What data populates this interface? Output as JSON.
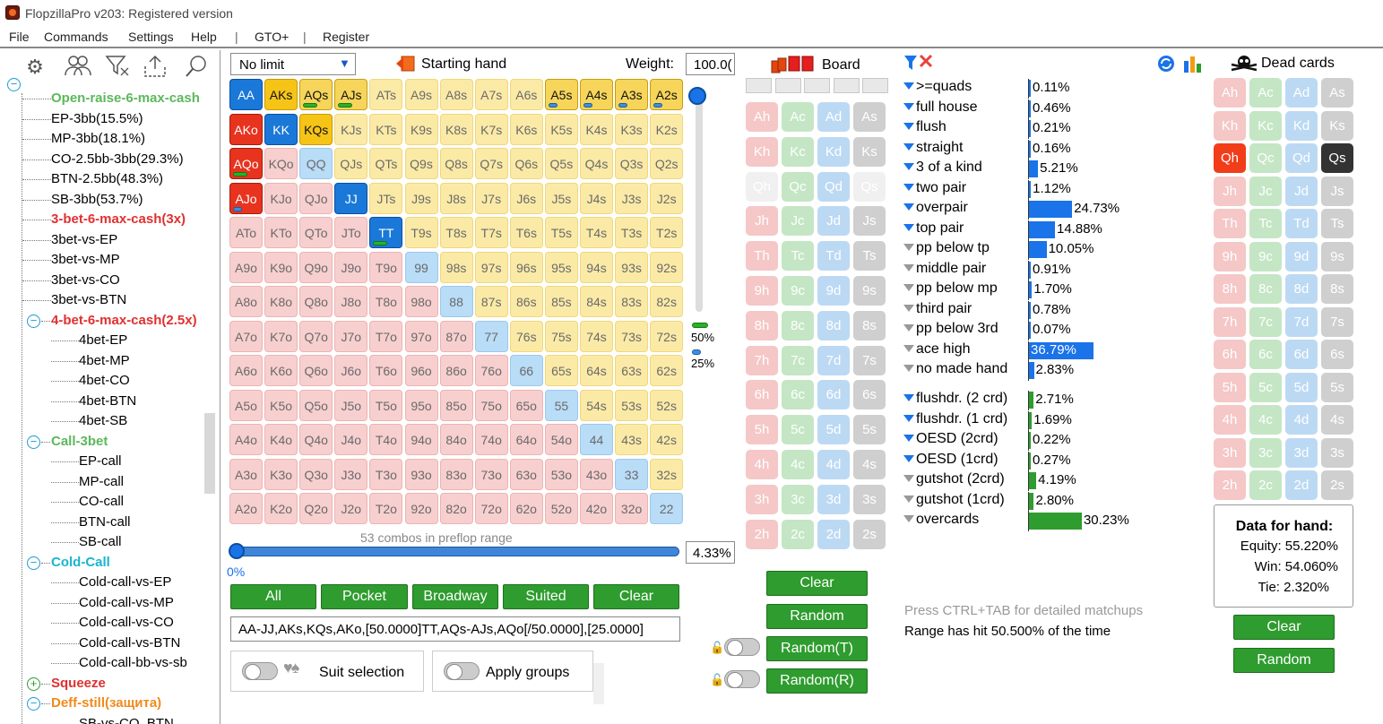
{
  "window": {
    "title": "FlopzillaPro v203: Registered version"
  },
  "menu": [
    "File",
    "Commands",
    "Settings",
    "Help",
    "|",
    "GTO+",
    "|",
    "Register"
  ],
  "tree": [
    {
      "label": "Open-raise-6-max-cash",
      "color": "#5cb85c",
      "level": 1,
      "bold": true
    },
    {
      "label": "EP-3bb(15.5%)",
      "color": "#000",
      "level": 1
    },
    {
      "label": "MP-3bb(18.1%)",
      "color": "#000",
      "level": 1
    },
    {
      "label": "CO-2.5bb-3bb(29.3%)",
      "color": "#000",
      "level": 1
    },
    {
      "label": "BTN-2.5bb(48.3%)",
      "color": "#000",
      "level": 1
    },
    {
      "label": "SB-3bb(53.7%)",
      "color": "#000",
      "level": 1
    },
    {
      "label": "3-bet-6-max-cash(3x)",
      "color": "#e03030",
      "level": 1,
      "bold": true
    },
    {
      "label": "3bet-vs-EP",
      "color": "#000",
      "level": 1
    },
    {
      "label": "3bet-vs-MP",
      "color": "#000",
      "level": 1
    },
    {
      "label": "3bet-vs-CO",
      "color": "#000",
      "level": 1
    },
    {
      "label": "3bet-vs-BTN",
      "color": "#000",
      "level": 1
    },
    {
      "label": "4-bet-6-max-cash(2.5x)",
      "color": "#e03030",
      "level": 1,
      "bold": true,
      "toggle": "⊖"
    },
    {
      "label": "4bet-EP",
      "color": "#000",
      "level": 2
    },
    {
      "label": "4bet-MP",
      "color": "#000",
      "level": 2
    },
    {
      "label": "4bet-CO",
      "color": "#000",
      "level": 2
    },
    {
      "label": "4bet-BTN",
      "color": "#000",
      "level": 2
    },
    {
      "label": "4bet-SB",
      "color": "#000",
      "level": 2
    },
    {
      "label": "Call-3bet",
      "color": "#5cb85c",
      "level": 1,
      "bold": true,
      "toggle": "⊖"
    },
    {
      "label": "EP-call",
      "color": "#000",
      "level": 2
    },
    {
      "label": "MP-call",
      "color": "#000",
      "level": 2
    },
    {
      "label": "CO-call",
      "color": "#000",
      "level": 2
    },
    {
      "label": "BTN-call",
      "color": "#000",
      "level": 2
    },
    {
      "label": "SB-call",
      "color": "#000",
      "level": 2
    },
    {
      "label": "Cold-Call",
      "color": "#19b5d0",
      "level": 1,
      "bold": true,
      "toggle": "⊖"
    },
    {
      "label": "Cold-call-vs-EP",
      "color": "#000",
      "level": 2
    },
    {
      "label": "Cold-call-vs-MP",
      "color": "#000",
      "level": 2
    },
    {
      "label": "Cold-call-vs-CO",
      "color": "#000",
      "level": 2
    },
    {
      "label": "Cold-call-vs-BTN",
      "color": "#000",
      "level": 2
    },
    {
      "label": "Cold-call-bb-vs-sb",
      "color": "#000",
      "level": 2
    },
    {
      "label": "Squeeze",
      "color": "#e03030",
      "level": 1,
      "bold": true,
      "toggle": "⊕"
    },
    {
      "label": "Deff-still(защита)",
      "color": "#f08a1c",
      "level": 1,
      "bold": true,
      "toggle": "⊖"
    },
    {
      "label": "SB-vs-CO, BTN",
      "color": "#000",
      "level": 2
    }
  ],
  "range": {
    "game_type": "No limit",
    "starting_hand_label": "Starting hand",
    "weight_label": "Weight:",
    "weight_value": "100.0(",
    "combos_text": "53 combos in preflop range",
    "slider_label": "0%",
    "percent_value": "4.33%",
    "legend_50": "50%",
    "legend_25": "25%",
    "range_text": "AA-JJ,AKs,KQs,AKo,[50.0000]TT,AQs-AJs,AQo[/50.0000],[25.0000]",
    "buttons": [
      "All",
      "Pocket",
      "Broadway",
      "Suited",
      "Clear"
    ],
    "suit_selection": "Suit selection",
    "apply_groups": "Apply groups"
  },
  "grid_ranks": [
    "A",
    "K",
    "Q",
    "J",
    "T",
    "9",
    "8",
    "7",
    "6",
    "5",
    "4",
    "3",
    "2"
  ],
  "grid_on": [
    "AA",
    "AKs",
    "KK",
    "KQs",
    "AKo",
    "JJ",
    "TT"
  ],
  "grid_half": [
    "AQs",
    "AJs",
    "A5s",
    "A4s",
    "A3s",
    "A2s",
    "AQo"
  ],
  "grid_green_bar": [
    "AQs",
    "AJs",
    "TT",
    "AQo"
  ],
  "grid_blue_bar": [
    "A5s",
    "A4s",
    "A3s",
    "A2s",
    "AJo"
  ],
  "grid_red_on": [
    "AJo"
  ],
  "board": {
    "title": "Board",
    "ranks": [
      "A",
      "K",
      "Q",
      "J",
      "T",
      "9",
      "8",
      "7",
      "6",
      "5",
      "4",
      "3",
      "2"
    ],
    "suits": [
      "h",
      "c",
      "d",
      "s"
    ],
    "faded": [
      "Qh",
      "Qs"
    ],
    "buttons": {
      "clear": "Clear",
      "random": "Random",
      "random_t": "Random(T)",
      "random_r": "Random(R)"
    }
  },
  "stats": {
    "made": [
      {
        "label": ">=quads",
        "value": "0.11%",
        "pct": 0.11,
        "filter": "blue"
      },
      {
        "label": "full house",
        "value": "0.46%",
        "pct": 0.46,
        "filter": "blue"
      },
      {
        "label": "flush",
        "value": "0.21%",
        "pct": 0.21,
        "filter": "blue"
      },
      {
        "label": "straight",
        "value": "0.16%",
        "pct": 0.16,
        "filter": "blue"
      },
      {
        "label": "3 of a kind",
        "value": "5.21%",
        "pct": 5.21,
        "filter": "blue"
      },
      {
        "label": "two pair",
        "value": "1.12%",
        "pct": 1.12,
        "filter": "blue"
      },
      {
        "label": "overpair",
        "value": "24.73%",
        "pct": 24.73,
        "filter": "blue"
      },
      {
        "label": "top pair",
        "value": "14.88%",
        "pct": 14.88,
        "filter": "blue"
      },
      {
        "label": "pp below tp",
        "value": "10.05%",
        "pct": 10.05,
        "filter": "grey"
      },
      {
        "label": "middle pair",
        "value": "0.91%",
        "pct": 0.91,
        "filter": "grey"
      },
      {
        "label": "pp below mp",
        "value": "1.70%",
        "pct": 1.7,
        "filter": "grey"
      },
      {
        "label": "third pair",
        "value": "0.78%",
        "pct": 0.78,
        "filter": "grey"
      },
      {
        "label": "pp below 3rd",
        "value": "0.07%",
        "pct": 0.07,
        "filter": "grey"
      },
      {
        "label": "ace high",
        "value": "36.79%",
        "pct": 36.79,
        "filter": "grey"
      },
      {
        "label": "no made hand",
        "value": "2.83%",
        "pct": 2.83,
        "filter": "grey"
      }
    ],
    "draws": [
      {
        "label": "flushdr. (2 crd)",
        "value": "2.71%",
        "pct": 2.71,
        "filter": "blue"
      },
      {
        "label": "flushdr. (1 crd)",
        "value": "1.69%",
        "pct": 1.69,
        "filter": "blue"
      },
      {
        "label": "OESD (2crd)",
        "value": "0.22%",
        "pct": 0.22,
        "filter": "blue"
      },
      {
        "label": "OESD (1crd)",
        "value": "0.27%",
        "pct": 0.27,
        "filter": "blue"
      },
      {
        "label": "gutshot (2crd)",
        "value": "4.19%",
        "pct": 4.19,
        "filter": "grey"
      },
      {
        "label": "gutshot (1crd)",
        "value": "2.80%",
        "pct": 2.8,
        "filter": "grey"
      },
      {
        "label": "overcards",
        "value": "30.23%",
        "pct": 30.23,
        "filter": "grey"
      }
    ],
    "hint": "Press CTRL+TAB for detailed matchups",
    "hit": "Range has hit 50.500% of the time"
  },
  "dead": {
    "title": "Dead cards",
    "active": {
      "Qh": "red",
      "Qs": "black"
    },
    "data_title": "Data for hand:",
    "equity": "Equity: 55.220%",
    "win": "Win: 54.060%",
    "tie": "Tie: 2.320%",
    "clear": "Clear",
    "random": "Random"
  },
  "colors": {
    "blue_bar": "#1a73e8",
    "green_bar": "#2e9c2e",
    "btn_green": "#2e9c2e"
  }
}
